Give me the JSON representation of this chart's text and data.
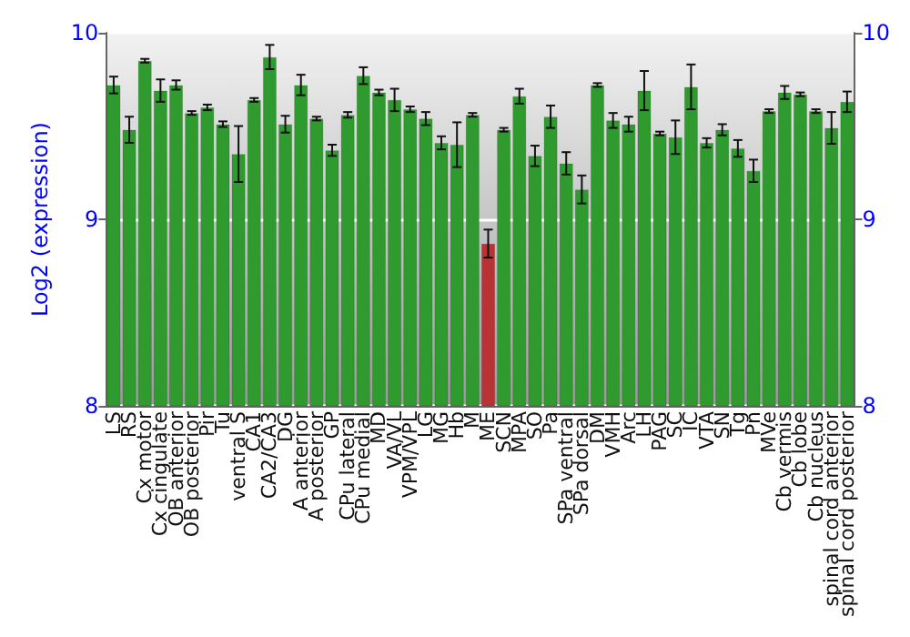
{
  "chart_data": {
    "type": "bar",
    "ylabel": "Log2 (expression)",
    "categories": [
      "LS",
      "RS",
      "Cx motor",
      "Cx cingulate",
      "OB anterior",
      "OB posterior",
      "Pir",
      "Tu",
      "ventral S",
      "CA1",
      "CA2/CA3",
      "DG",
      "A anterior",
      "A posterior",
      "GP",
      "CPu lateral",
      "CPu medial",
      "MD",
      "VA/VL",
      "VPM/VPL",
      "LG",
      "MG",
      "Hb",
      "M",
      "ME",
      "SCN",
      "MPA",
      "SO",
      "Pa",
      "SPa ventral",
      "SPa dorsal",
      "DM",
      "VMH",
      "Arc",
      "LH",
      "PAG",
      "SC",
      "IC",
      "VTA",
      "SN",
      "Tg",
      "Pn",
      "MVe",
      "Cb vermis",
      "Cb lobe",
      "Cb nucleus",
      "spinal cord anterior",
      "spinal cord posterior"
    ],
    "values": [
      9.72,
      9.48,
      9.85,
      9.69,
      9.72,
      9.57,
      9.6,
      9.51,
      9.35,
      9.64,
      9.87,
      9.51,
      9.72,
      9.54,
      9.37,
      9.56,
      9.77,
      9.68,
      9.64,
      9.59,
      9.54,
      9.41,
      9.4,
      9.56,
      8.87,
      9.48,
      9.66,
      9.34,
      9.55,
      9.3,
      9.16,
      9.72,
      9.53,
      9.51,
      9.69,
      9.46,
      9.44,
      9.71,
      9.41,
      9.48,
      9.38,
      9.26,
      9.58,
      9.68,
      9.67,
      9.58,
      9.49,
      9.63
    ],
    "errors": [
      0.045,
      0.07,
      0.01,
      0.06,
      0.025,
      0.01,
      0.015,
      0.015,
      0.15,
      0.01,
      0.065,
      0.045,
      0.055,
      0.01,
      0.03,
      0.015,
      0.045,
      0.015,
      0.06,
      0.015,
      0.035,
      0.035,
      0.12,
      0.01,
      0.075,
      0.01,
      0.04,
      0.055,
      0.06,
      0.06,
      0.075,
      0.01,
      0.04,
      0.04,
      0.105,
      0.01,
      0.09,
      0.12,
      0.025,
      0.03,
      0.045,
      0.06,
      0.01,
      0.035,
      0.01,
      0.01,
      0.085,
      0.055
    ],
    "colors": [
      "#2f9b2f",
      "#2f9b2f",
      "#2f9b2f",
      "#2f9b2f",
      "#2f9b2f",
      "#2f9b2f",
      "#2f9b2f",
      "#2f9b2f",
      "#2f9b2f",
      "#2f9b2f",
      "#2f9b2f",
      "#2f9b2f",
      "#2f9b2f",
      "#2f9b2f",
      "#2f9b2f",
      "#2f9b2f",
      "#2f9b2f",
      "#2f9b2f",
      "#2f9b2f",
      "#2f9b2f",
      "#2f9b2f",
      "#2f9b2f",
      "#2f9b2f",
      "#2f9b2f",
      "#b83333",
      "#2f9b2f",
      "#2f9b2f",
      "#2f9b2f",
      "#2f9b2f",
      "#2f9b2f",
      "#2f9b2f",
      "#2f9b2f",
      "#2f9b2f",
      "#2f9b2f",
      "#2f9b2f",
      "#2f9b2f",
      "#2f9b2f",
      "#2f9b2f",
      "#2f9b2f",
      "#2f9b2f",
      "#2f9b2f",
      "#2f9b2f",
      "#2f9b2f",
      "#2f9b2f",
      "#2f9b2f",
      "#2f9b2f",
      "#2f9b2f",
      "#2f9b2f"
    ],
    "ylim": [
      8,
      10
    ],
    "yticks": [
      8,
      9,
      10
    ],
    "y2lim": [
      8,
      10
    ],
    "y2ticks": [
      8,
      9,
      10
    ],
    "grid": "y"
  }
}
